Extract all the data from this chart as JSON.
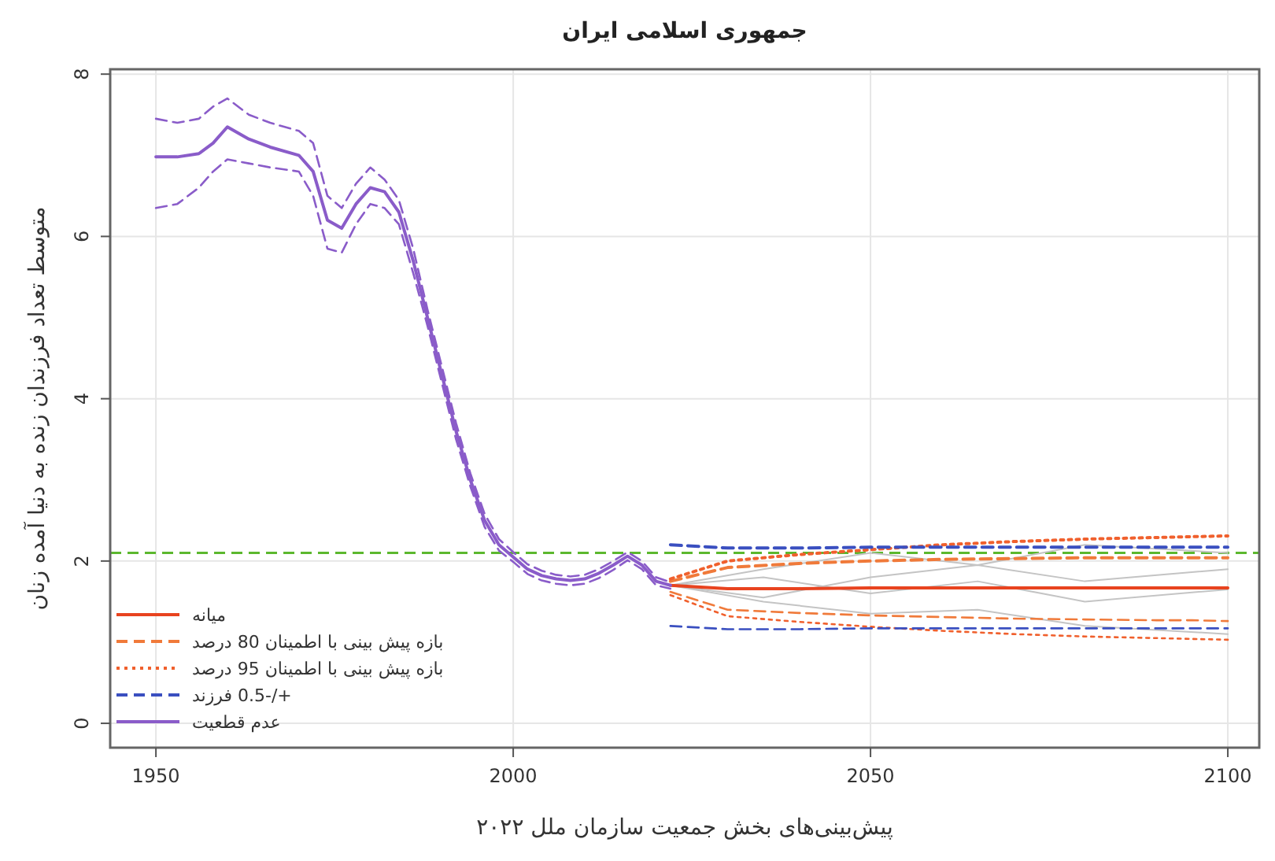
{
  "chart_data": {
    "type": "line",
    "title": "جمهوری اسلامی ایران",
    "xlabel": "پیش‌بینی‌های بخش جمعیت سازمان ملل ۲۰۲۲",
    "ylabel": "متوسط تعداد فرزندان زنده به دنیا آمده زنان",
    "xlim": [
      1943.6,
      2104.4
    ],
    "xticks": [
      1950,
      2000,
      2050,
      2100
    ],
    "ylim": [
      -0.3,
      8.06
    ],
    "yticks": [
      0,
      2,
      4,
      6,
      8
    ],
    "grid": true,
    "legend": "bottom left",
    "ref_lines": [
      {
        "axis": "y",
        "value": 2.1,
        "color": "#5cb82e",
        "line_style": "dashed"
      }
    ],
    "series": [
      {
        "color": "#c4c4c4",
        "line_style": "solid",
        "x": [
          2022,
          2035,
          2050,
          2065,
          2080,
          2100
        ],
        "values": [
          1.7,
          1.9,
          2.1,
          1.95,
          2.2,
          2.1
        ]
      },
      {
        "color": "#c4c4c4",
        "line_style": "solid",
        "x": [
          2022,
          2035,
          2050,
          2065,
          2080,
          2100
        ],
        "values": [
          1.7,
          1.5,
          1.35,
          1.4,
          1.2,
          1.1
        ]
      },
      {
        "color": "#c4c4c4",
        "line_style": "solid",
        "x": [
          2022,
          2035,
          2050,
          2065,
          2080,
          2100
        ],
        "values": [
          1.7,
          1.8,
          1.6,
          1.75,
          1.5,
          1.65
        ]
      },
      {
        "color": "#c4c4c4",
        "line_style": "solid",
        "x": [
          2022,
          2035,
          2050,
          2065,
          2080,
          2100
        ],
        "values": [
          1.7,
          1.55,
          1.8,
          1.95,
          1.75,
          1.9
        ]
      },
      {
        "name": "میانه",
        "color": "#e8431f",
        "line_style": "solid",
        "x": [
          2022,
          2030,
          2040,
          2050,
          2060,
          2070,
          2080,
          2090,
          2095,
          2100
        ],
        "values": [
          1.7,
          1.66,
          1.66,
          1.67,
          1.67,
          1.67,
          1.67,
          1.67,
          1.67,
          1.67
        ]
      },
      {
        "name": "بازه پیش بینی با اطمینان 80 درصد",
        "color": "#f07a3a",
        "line_style": "dashed",
        "x": [
          2022,
          2030,
          2040,
          2050,
          2060,
          2070,
          2080,
          2090,
          2095,
          2100
        ],
        "values": [
          1.75,
          1.92,
          1.97,
          2.0,
          2.02,
          2.03,
          2.04,
          2.04,
          2.04,
          2.04
        ]
      },
      {
        "color": "#f07a3a",
        "line_style": "dashed",
        "x": [
          2022,
          2030,
          2040,
          2050,
          2060,
          2070,
          2080,
          2090,
          2095,
          2100
        ],
        "values": [
          1.62,
          1.4,
          1.36,
          1.33,
          1.31,
          1.29,
          1.28,
          1.27,
          1.27,
          1.26
        ]
      },
      {
        "name": "بازه پیش بینی با اطمینان 95 درصد",
        "color": "#f0602d",
        "line_style": "dotted",
        "x": [
          2022,
          2030,
          2040,
          2050,
          2060,
          2070,
          2080,
          2090,
          2095,
          2100
        ],
        "values": [
          1.78,
          2.0,
          2.08,
          2.14,
          2.2,
          2.24,
          2.27,
          2.29,
          2.3,
          2.31
        ]
      },
      {
        "color": "#f0602d",
        "line_style": "dotted",
        "x": [
          2022,
          2030,
          2040,
          2050,
          2060,
          2070,
          2080,
          2090,
          2095,
          2100
        ],
        "values": [
          1.58,
          1.32,
          1.25,
          1.19,
          1.14,
          1.1,
          1.07,
          1.05,
          1.04,
          1.03
        ]
      },
      {
        "name": "+/-0.5 فرزند",
        "color": "#3a4fc0",
        "line_style": "dashed",
        "x": [
          2022,
          2030,
          2040,
          2050,
          2060,
          2070,
          2080,
          2090,
          2095,
          2100
        ],
        "values": [
          2.2,
          2.16,
          2.16,
          2.17,
          2.17,
          2.17,
          2.17,
          2.17,
          2.17,
          2.17
        ]
      },
      {
        "color": "#3a4fc0",
        "line_style": "dashed",
        "x": [
          2022,
          2030,
          2040,
          2050,
          2060,
          2070,
          2080,
          2090,
          2095,
          2100
        ],
        "values": [
          1.2,
          1.16,
          1.16,
          1.17,
          1.17,
          1.17,
          1.17,
          1.17,
          1.17,
          1.17
        ]
      },
      {
        "name": "عدم قطعیت",
        "color": "#8a5cc9",
        "line_style": "solid",
        "x": [
          1950,
          1953,
          1956,
          1958,
          1960,
          1963,
          1966,
          1970,
          1972,
          1974,
          1976,
          1978,
          1980,
          1982,
          1984,
          1986,
          1988,
          1990,
          1992,
          1994,
          1996,
          1998,
          2000,
          2002,
          2004,
          2006,
          2008,
          2010,
          2012,
          2014,
          2016,
          2018,
          2020,
          2022
        ],
        "values": [
          6.98,
          6.98,
          7.02,
          7.15,
          7.35,
          7.2,
          7.1,
          7.0,
          6.8,
          6.2,
          6.1,
          6.4,
          6.6,
          6.55,
          6.3,
          5.7,
          5.0,
          4.3,
          3.6,
          3.0,
          2.5,
          2.2,
          2.05,
          1.9,
          1.82,
          1.78,
          1.76,
          1.78,
          1.85,
          1.95,
          2.06,
          1.95,
          1.75,
          1.7
        ]
      },
      {
        "color": "#8a5cc9",
        "line_style": "dashed",
        "x": [
          1950,
          1953,
          1956,
          1958,
          1960,
          1963,
          1966,
          1970,
          1972,
          1974,
          1976,
          1978,
          1980,
          1982,
          1984,
          1986,
          1988,
          1990,
          1992,
          1994,
          1996,
          1998,
          2000,
          2002,
          2004,
          2006,
          2008,
          2010,
          2012,
          2014,
          2016,
          2018,
          2020,
          2022
        ],
        "values": [
          7.45,
          7.4,
          7.45,
          7.6,
          7.7,
          7.5,
          7.4,
          7.3,
          7.15,
          6.5,
          6.35,
          6.65,
          6.85,
          6.7,
          6.45,
          5.85,
          5.1,
          4.4,
          3.7,
          3.08,
          2.58,
          2.27,
          2.11,
          1.96,
          1.88,
          1.83,
          1.81,
          1.83,
          1.9,
          2.0,
          2.11,
          2.0,
          1.8,
          1.74
        ]
      },
      {
        "color": "#8a5cc9",
        "line_style": "dashed",
        "x": [
          1950,
          1953,
          1956,
          1958,
          1960,
          1963,
          1966,
          1970,
          1972,
          1974,
          1976,
          1978,
          1980,
          1982,
          1984,
          1986,
          1988,
          1990,
          1992,
          1994,
          1996,
          1998,
          2000,
          2002,
          2004,
          2006,
          2008,
          2010,
          2012,
          2014,
          2016,
          2018,
          2020,
          2022
        ],
        "values": [
          6.35,
          6.4,
          6.6,
          6.8,
          6.95,
          6.9,
          6.85,
          6.8,
          6.5,
          5.85,
          5.8,
          6.15,
          6.4,
          6.35,
          6.15,
          5.55,
          4.9,
          4.2,
          3.5,
          2.92,
          2.42,
          2.13,
          1.99,
          1.84,
          1.76,
          1.72,
          1.7,
          1.72,
          1.79,
          1.89,
          2.01,
          1.9,
          1.7,
          1.66
        ]
      }
    ]
  }
}
